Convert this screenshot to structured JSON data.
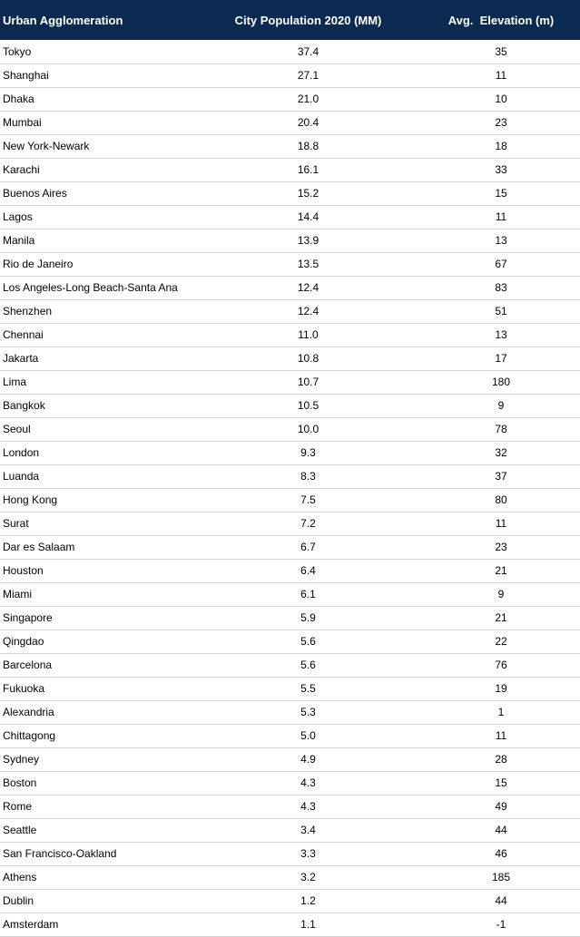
{
  "table": {
    "headers": {
      "name": "Urban Agglomeration",
      "population": "City Population 2020 (MM)",
      "elevation": "Avg.  Elevation (m)"
    },
    "header_bg": "#0b2a52",
    "rows": [
      {
        "name": "Tokyo",
        "population": "37.4",
        "elevation": "35"
      },
      {
        "name": "Shanghai",
        "population": "27.1",
        "elevation": "11"
      },
      {
        "name": "Dhaka",
        "population": "21.0",
        "elevation": "10"
      },
      {
        "name": "Mumbai",
        "population": "20.4",
        "elevation": "23"
      },
      {
        "name": "New York-Newark",
        "population": "18.8",
        "elevation": "18"
      },
      {
        "name": "Karachi",
        "population": "16.1",
        "elevation": "33"
      },
      {
        "name": "Buenos Aires",
        "population": "15.2",
        "elevation": "15"
      },
      {
        "name": "Lagos",
        "population": "14.4",
        "elevation": "11"
      },
      {
        "name": "Manila",
        "population": "13.9",
        "elevation": "13"
      },
      {
        "name": "Rio de Janeiro",
        "population": "13.5",
        "elevation": "67"
      },
      {
        "name": "Los Angeles-Long Beach-Santa Ana",
        "population": "12.4",
        "elevation": "83"
      },
      {
        "name": "Shenzhen",
        "population": "12.4",
        "elevation": "51"
      },
      {
        "name": "Chennai",
        "population": "11.0",
        "elevation": "13"
      },
      {
        "name": "Jakarta",
        "population": "10.8",
        "elevation": "17"
      },
      {
        "name": "Lima",
        "population": "10.7",
        "elevation": "180"
      },
      {
        "name": "Bangkok",
        "population": "10.5",
        "elevation": "9"
      },
      {
        "name": "Seoul",
        "population": "10.0",
        "elevation": "78"
      },
      {
        "name": "London",
        "population": "9.3",
        "elevation": "32"
      },
      {
        "name": "Luanda",
        "population": "8.3",
        "elevation": "37"
      },
      {
        "name": "Hong Kong",
        "population": "7.5",
        "elevation": "80"
      },
      {
        "name": "Surat",
        "population": "7.2",
        "elevation": "11"
      },
      {
        "name": "Dar es Salaam",
        "population": "6.7",
        "elevation": "23"
      },
      {
        "name": "Houston",
        "population": "6.4",
        "elevation": "21"
      },
      {
        "name": "Miami",
        "population": "6.1",
        "elevation": "9"
      },
      {
        "name": "Singapore",
        "population": "5.9",
        "elevation": "21"
      },
      {
        "name": "Qingdao",
        "population": "5.6",
        "elevation": "22"
      },
      {
        "name": "Barcelona",
        "population": "5.6",
        "elevation": "76"
      },
      {
        "name": "Fukuoka",
        "population": "5.5",
        "elevation": "19"
      },
      {
        "name": "Alexandria",
        "population": "5.3",
        "elevation": "1"
      },
      {
        "name": "Chittagong",
        "population": "5.0",
        "elevation": "11"
      },
      {
        "name": "Sydney",
        "population": "4.9",
        "elevation": "28"
      },
      {
        "name": "Boston",
        "population": "4.3",
        "elevation": "15"
      },
      {
        "name": "Rome",
        "population": "4.3",
        "elevation": "49"
      },
      {
        "name": "Seattle",
        "population": "3.4",
        "elevation": "44"
      },
      {
        "name": "San Francisco-Oakland",
        "population": "3.3",
        "elevation": "46"
      },
      {
        "name": "Athens",
        "population": "3.2",
        "elevation": "185"
      },
      {
        "name": "Dublin",
        "population": "1.2",
        "elevation": "44"
      },
      {
        "name": "Amsterdam",
        "population": "1.1",
        "elevation": "-1"
      }
    ]
  }
}
